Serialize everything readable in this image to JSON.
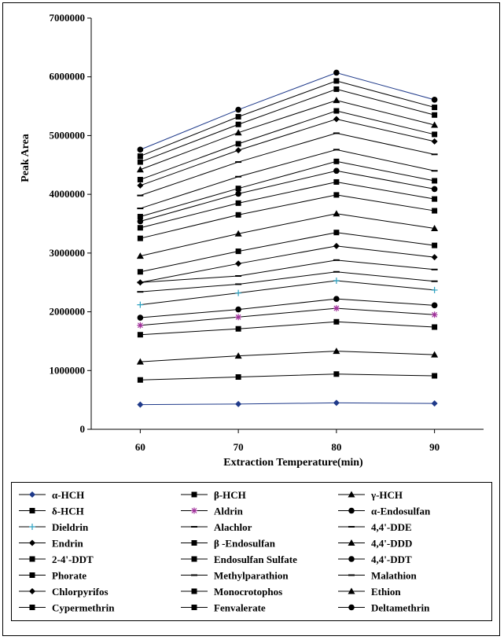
{
  "chart_data": {
    "type": "line",
    "title": "",
    "xlabel": "Extraction Temperature(min)",
    "ylabel": "Peak Area",
    "x": [
      60,
      70,
      80,
      90
    ],
    "xlim": [
      55,
      95
    ],
    "ylim": [
      0,
      7000000
    ],
    "yticks": [
      "0",
      "1000000",
      "2000000",
      "3000000",
      "4000000",
      "5000000",
      "6000000",
      "7000000"
    ],
    "xticks": [
      "60",
      "70",
      "80",
      "90"
    ],
    "grid": false,
    "legend_position": "bottom",
    "series": [
      {
        "name": "α-HCH",
        "marker": "diamond",
        "color": "#1f3a8a",
        "values": [
          420000,
          430000,
          450000,
          440000
        ]
      },
      {
        "name": "β-HCH",
        "marker": "square",
        "color": "#000000",
        "values": [
          840000,
          890000,
          940000,
          910000
        ]
      },
      {
        "name": "γ-HCH",
        "marker": "triangle",
        "color": "#000000",
        "values": [
          1150000,
          1250000,
          1330000,
          1270000
        ]
      },
      {
        "name": "δ-HCH",
        "marker": "square",
        "color": "#000000",
        "values": [
          1610000,
          1710000,
          1830000,
          1740000
        ]
      },
      {
        "name": "Aldrin",
        "marker": "star",
        "color": "#a0309a",
        "values": [
          1770000,
          1910000,
          2060000,
          1950000
        ]
      },
      {
        "name": "α-Endosulfan",
        "marker": "circle",
        "color": "#000000",
        "values": [
          1900000,
          2040000,
          2220000,
          2110000
        ]
      },
      {
        "name": "Dieldrin",
        "marker": "plus",
        "color": "#2aa0c0",
        "values": [
          2120000,
          2320000,
          2530000,
          2370000
        ]
      },
      {
        "name": "Alachlor",
        "marker": "dash",
        "color": "#000000",
        "values": [
          2340000,
          2470000,
          2680000,
          2520000
        ]
      },
      {
        "name": "4,4'-DDE",
        "marker": "dash",
        "color": "#000000",
        "values": [
          2500000,
          2610000,
          2880000,
          2720000
        ]
      },
      {
        "name": "Endrin",
        "marker": "diamond",
        "color": "#000000",
        "values": [
          2500000,
          2820000,
          3120000,
          2930000
        ]
      },
      {
        "name": "β -Endosulfan",
        "marker": "square",
        "color": "#000000",
        "values": [
          2680000,
          3030000,
          3350000,
          3130000
        ]
      },
      {
        "name": "4,4'-DDD",
        "marker": "triangle",
        "color": "#000000",
        "values": [
          2950000,
          3330000,
          3670000,
          3420000
        ]
      },
      {
        "name": "2-4'-DDT",
        "marker": "square",
        "color": "#000000",
        "values": [
          3250000,
          3650000,
          3990000,
          3720000
        ]
      },
      {
        "name": "Endosulfan Sulfate",
        "marker": "square",
        "color": "#000000",
        "values": [
          3430000,
          3850000,
          4210000,
          3920000
        ]
      },
      {
        "name": "4,4'-DDT",
        "marker": "circle",
        "color": "#000000",
        "values": [
          3540000,
          4010000,
          4400000,
          4090000
        ]
      },
      {
        "name": "Phorate",
        "marker": "square",
        "color": "#000000",
        "values": [
          3620000,
          4100000,
          4560000,
          4230000
        ]
      },
      {
        "name": "Methylparathion",
        "marker": "dash",
        "color": "#000000",
        "values": [
          3760000,
          4300000,
          4760000,
          4400000
        ]
      },
      {
        "name": "Malathion",
        "marker": "dash",
        "color": "#000000",
        "values": [
          3980000,
          4550000,
          5040000,
          4680000
        ]
      },
      {
        "name": "Chlorpyrifos",
        "marker": "diamond",
        "color": "#000000",
        "values": [
          4150000,
          4750000,
          5280000,
          4900000
        ]
      },
      {
        "name": "Monocrotophos",
        "marker": "square",
        "color": "#000000",
        "values": [
          4250000,
          4860000,
          5420000,
          5020000
        ]
      },
      {
        "name": "Ethion",
        "marker": "triangle",
        "color": "#000000",
        "values": [
          4420000,
          5050000,
          5600000,
          5180000
        ]
      },
      {
        "name": "Cypermethrin",
        "marker": "square",
        "color": "#000000",
        "values": [
          4550000,
          5190000,
          5790000,
          5350000
        ]
      },
      {
        "name": "Fenvalerate",
        "marker": "square",
        "color": "#000000",
        "values": [
          4650000,
          5320000,
          5930000,
          5480000
        ]
      },
      {
        "name": "Deltamethrin",
        "marker": "circle",
        "color": "#000000",
        "values": [
          4760000,
          5440000,
          6070000,
          5610000
        ]
      }
    ]
  }
}
